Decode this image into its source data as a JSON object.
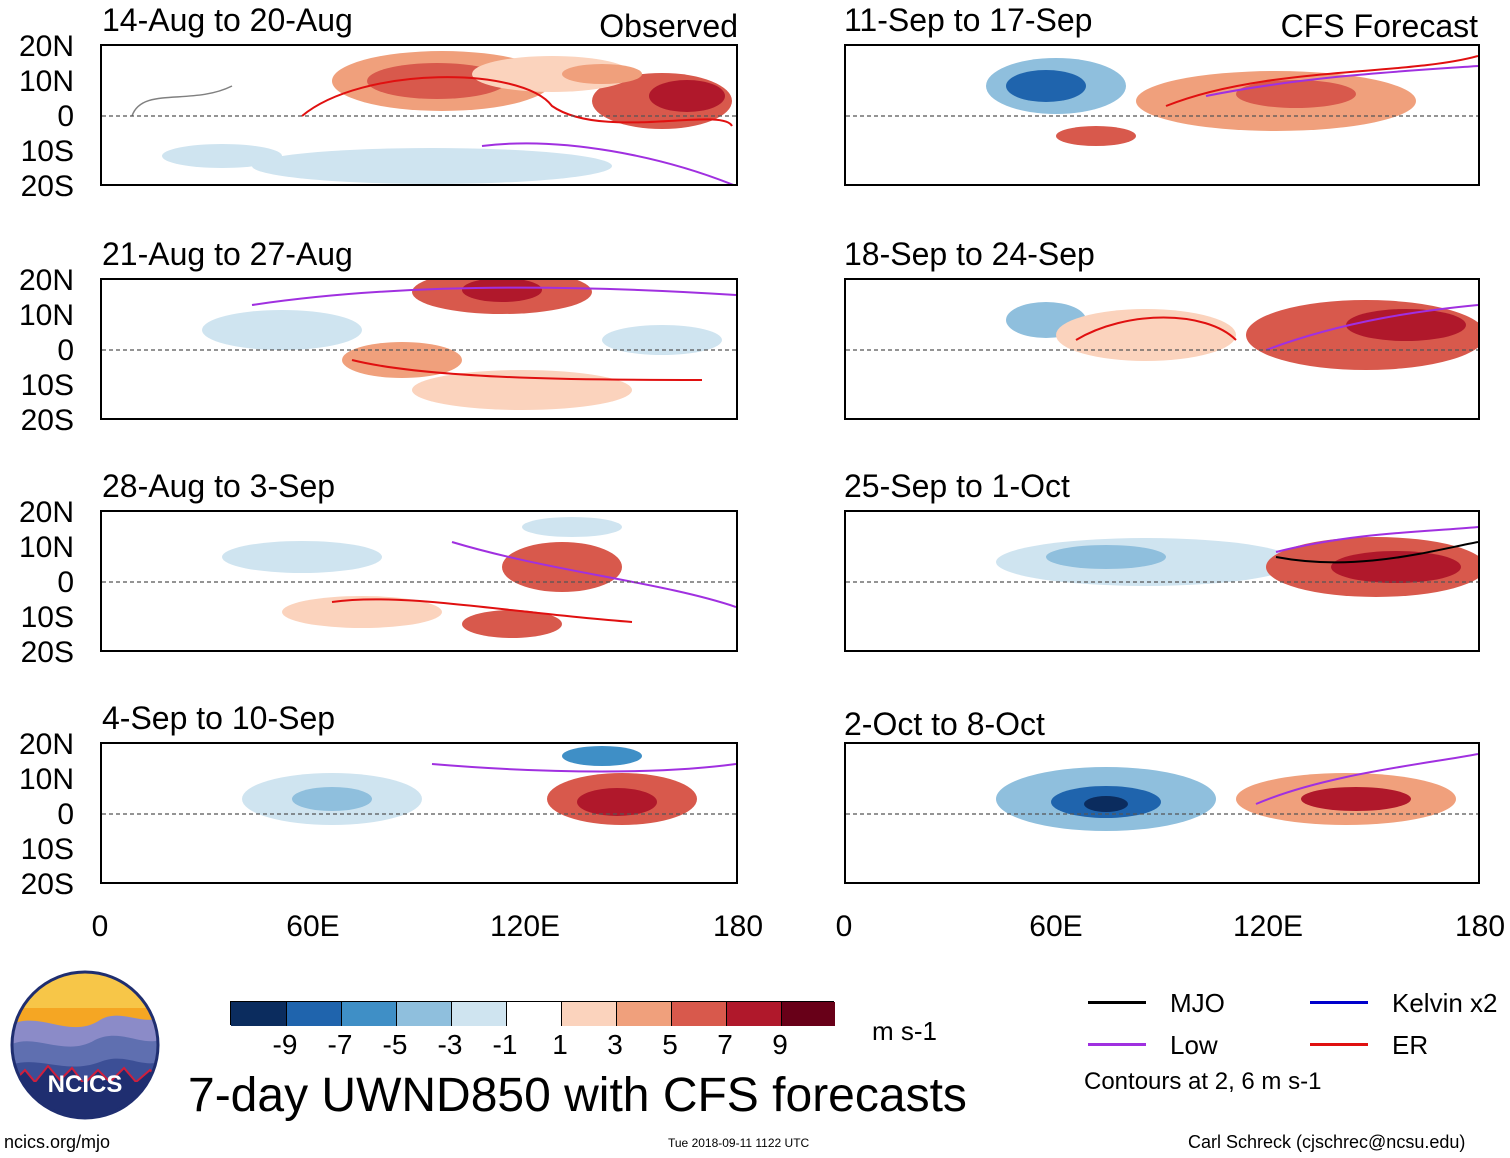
{
  "observed_label": "Observed",
  "forecast_label": "CFS Forecast",
  "lat_labels": [
    "20N",
    "10N",
    "0",
    "10S",
    "20S"
  ],
  "lon_labels": [
    "0",
    "60E",
    "120E",
    "180"
  ],
  "panels": {
    "observed": [
      {
        "title": "14-Aug to 20-Aug"
      },
      {
        "title": "21-Aug to 27-Aug"
      },
      {
        "title": "28-Aug to 3-Sep"
      },
      {
        "title": "4-Sep to 10-Sep"
      }
    ],
    "forecast": [
      {
        "title": "11-Sep to 17-Sep"
      },
      {
        "title": "18-Sep to 24-Sep"
      },
      {
        "title": "25-Sep to 1-Oct"
      },
      {
        "title": "2-Oct to 8-Oct"
      }
    ]
  },
  "colorbar": {
    "ticks": [
      "-9",
      "-7",
      "-5",
      "-3",
      "-1",
      "1",
      "3",
      "5",
      "7",
      "9"
    ],
    "colors": [
      "#0b2c5e",
      "#1f64ad",
      "#3f8fc6",
      "#8fbfdd",
      "#cfe4f0",
      "#ffffff",
      "#fbd3bd",
      "#f0a07c",
      "#d8594c",
      "#b0182b",
      "#680018"
    ],
    "units": "m s-1"
  },
  "legend": {
    "items": [
      {
        "label": "MJO",
        "color": "#000000"
      },
      {
        "label": "Kelvin x2",
        "color": "#0000cc"
      },
      {
        "label": "Low",
        "color": "#a030e0"
      },
      {
        "label": "ER",
        "color": "#e01010"
      }
    ],
    "note": "Contours at 2, 6 m s-1"
  },
  "logo": {
    "text": "NCICS"
  },
  "title": "7-day UWND850 with CFS forecasts",
  "footer": {
    "left": "ncics.org/mjo",
    "center": "Tue 2018-09-11 1122 UTC",
    "right": "Carl Schreck (cjschrec@ncsu.edu)"
  }
}
